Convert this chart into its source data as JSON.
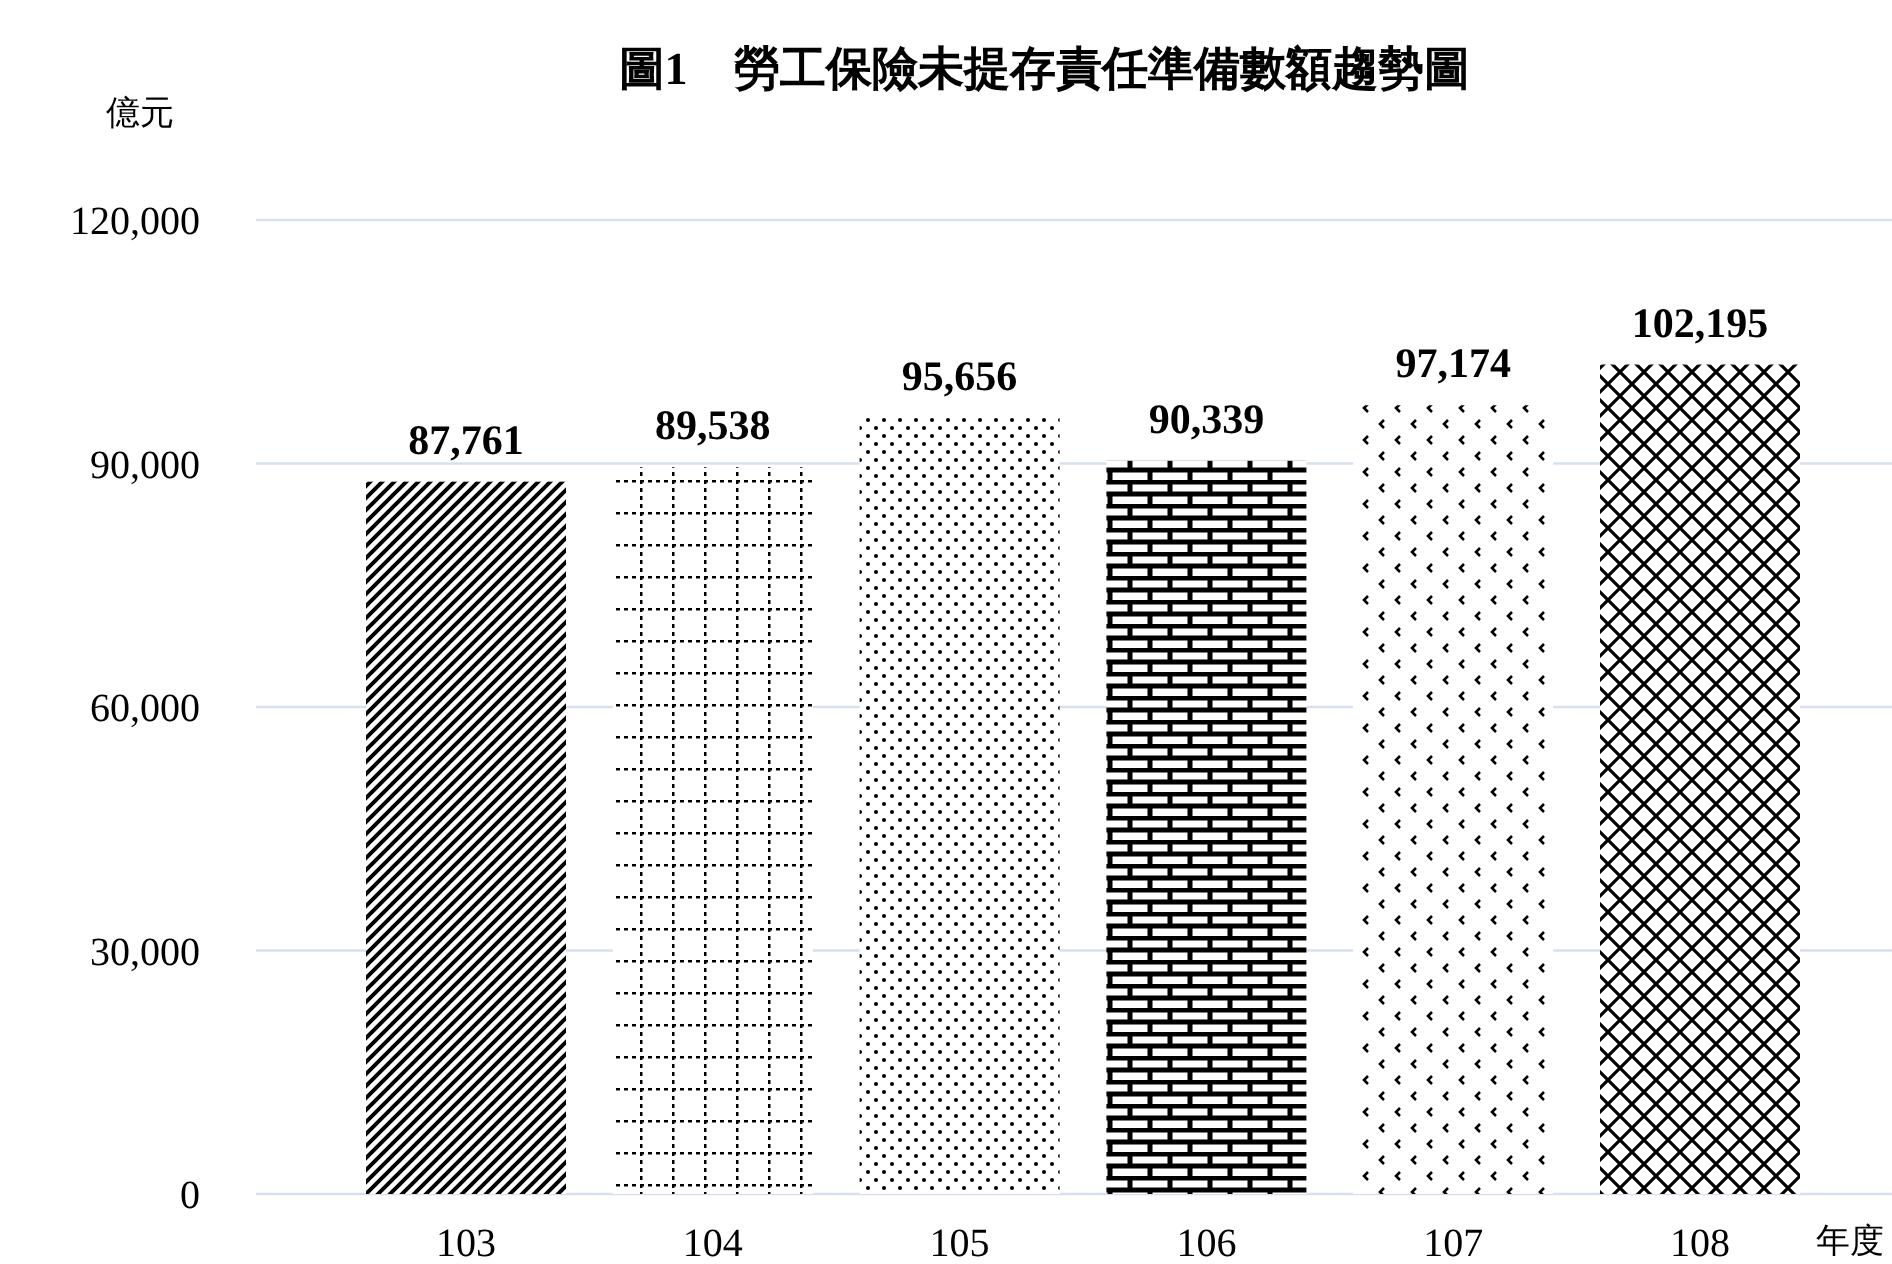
{
  "chart_data": {
    "type": "bar",
    "title": "圖1　勞工保險未提存責任準備數額趨勢圖",
    "ylabel": "億元",
    "xlabel": "年度",
    "categories": [
      "103",
      "104",
      "105",
      "106",
      "107",
      "108"
    ],
    "values": [
      87761,
      89538,
      95656,
      90339,
      97174,
      102195
    ],
    "color": "#000000",
    "value_labels": [
      "87,761",
      "89,538",
      "95,656",
      "90,339",
      "97,174",
      "102,195"
    ],
    "ylim": [
      0,
      120000
    ],
    "yticks": [
      {
        "value": 0,
        "label": "0"
      },
      {
        "value": 30000,
        "label": "30,000"
      },
      {
        "value": 60000,
        "label": "60,000"
      },
      {
        "value": 90000,
        "label": "90,000"
      },
      {
        "value": 120000,
        "label": "120,000"
      }
    ],
    "grid": "y"
  }
}
